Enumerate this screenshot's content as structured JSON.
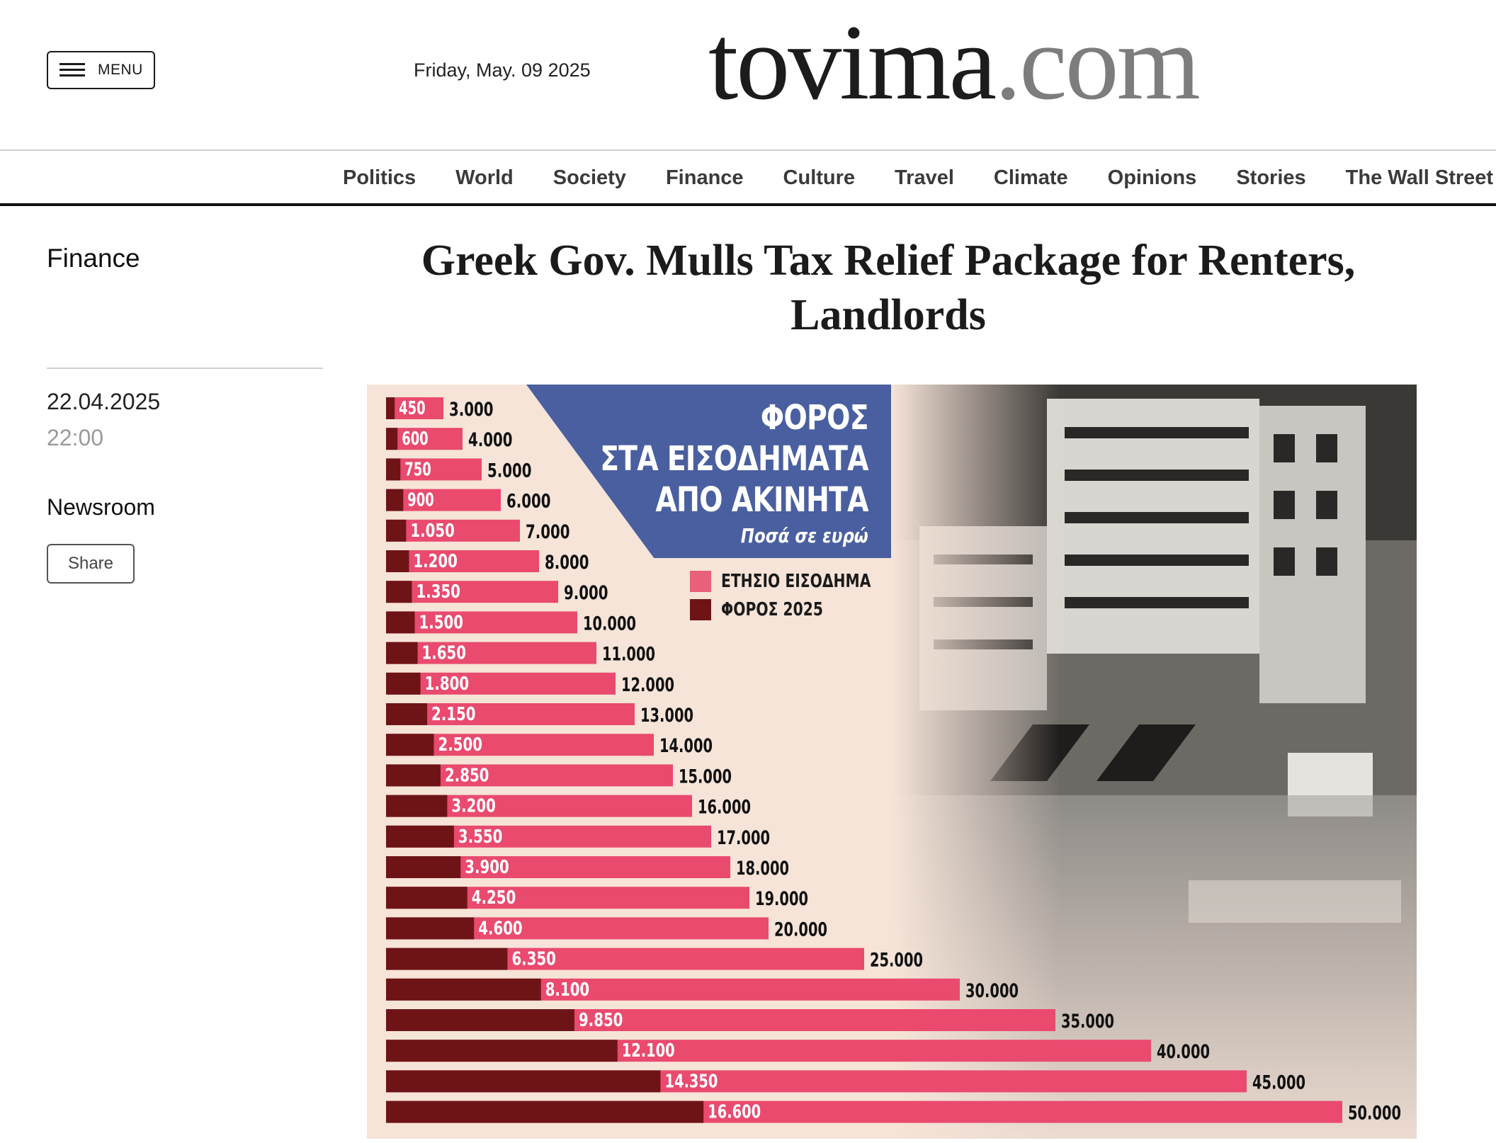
{
  "header": {
    "menu_label": "MENU",
    "date": "Friday, May. 09 2025",
    "logo_main": "tovima",
    "logo_suffix": ".com"
  },
  "nav": {
    "items": [
      "Politics",
      "World",
      "Society",
      "Finance",
      "Culture",
      "Travel",
      "Climate",
      "Opinions",
      "Stories",
      "The Wall Street"
    ]
  },
  "sidebar": {
    "section": "Finance",
    "date": "22.04.2025",
    "time": "22:00",
    "author": "Newsroom",
    "share_label": "Share"
  },
  "article": {
    "title": "Greek Gov. Mulls Tax Relief Package for Renters, Landlords"
  },
  "infographic": {
    "title_lines": [
      "ΦΟΡΟΣ",
      "ΣΤΑ ΕΙΣΟΔΗΜΑΤΑ",
      "ΑΠΟ ΑΚΙΝΗΤΑ"
    ],
    "subtitle": "Ποσά σε ευρώ",
    "legend": [
      {
        "label": "ΕΤΗΣΙΟ ΕΙΣΟΔΗΜΑ",
        "color": "#e8607a"
      },
      {
        "label": "ΦΟΡΟΣ 2025",
        "color": "#6e1416"
      }
    ],
    "colors": {
      "income": "#e94a6e",
      "tax": "#6e1416",
      "banner": "#4a5f9f",
      "background": "#f6e4d8"
    }
  },
  "chart_data": {
    "type": "bar",
    "orientation": "horizontal",
    "series": [
      {
        "name": "ΕΤΗΣΙΟ ΕΙΣΟΔΗΜΑ",
        "values": [
          3000,
          4000,
          5000,
          6000,
          7000,
          8000,
          9000,
          10000,
          11000,
          12000,
          13000,
          14000,
          15000,
          16000,
          17000,
          18000,
          19000,
          20000,
          25000,
          30000,
          35000,
          40000,
          45000,
          50000
        ]
      },
      {
        "name": "ΦΟΡΟΣ 2025",
        "values": [
          450,
          600,
          750,
          900,
          1050,
          1200,
          1350,
          1500,
          1650,
          1800,
          2150,
          2500,
          2850,
          3200,
          3550,
          3900,
          4250,
          4600,
          6350,
          8100,
          9850,
          12100,
          14350,
          16600
        ]
      }
    ],
    "income_labels": [
      "3.000",
      "4.000",
      "5.000",
      "6.000",
      "7.000",
      "8.000",
      "9.000",
      "10.000",
      "11.000",
      "12.000",
      "13.000",
      "14.000",
      "15.000",
      "16.000",
      "17.000",
      "18.000",
      "19.000",
      "20.000",
      "25.000",
      "30.000",
      "35.000",
      "40.000",
      "45.000",
      "50.000"
    ],
    "tax_labels": [
      "450",
      "600",
      "750",
      "900",
      "1.050",
      "1.200",
      "1.350",
      "1.500",
      "1.650",
      "1.800",
      "2.150",
      "2.500",
      "2.850",
      "3.200",
      "3.550",
      "3.900",
      "4.250",
      "4.600",
      "6.350",
      "8.100",
      "9.850",
      "12.100",
      "14.350",
      "16.600"
    ],
    "legend_position": "middle-center",
    "grid": false
  }
}
